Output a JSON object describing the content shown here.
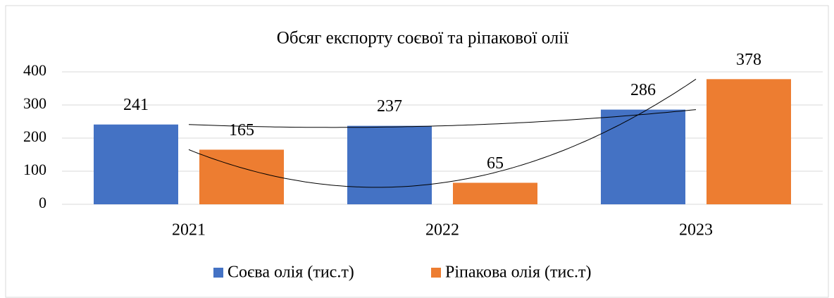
{
  "chart_data": {
    "type": "bar",
    "title": "Обсяг експорту соєвої та ріпакової олії",
    "categories": [
      "2021",
      "2022",
      "2023"
    ],
    "series": [
      {
        "name": "Соєва олія (тис.т)",
        "color": "#4472c4",
        "values": [
          241,
          237,
          286
        ]
      },
      {
        "name": "Ріпакова олія (тис.т)",
        "color": "#ed7d31",
        "values": [
          165,
          65,
          378
        ]
      }
    ],
    "ylim": [
      0,
      400
    ],
    "yticks": [
      0,
      100,
      200,
      300,
      400
    ],
    "grid": true,
    "trendline": "polynomial",
    "legend": "bottom"
  }
}
